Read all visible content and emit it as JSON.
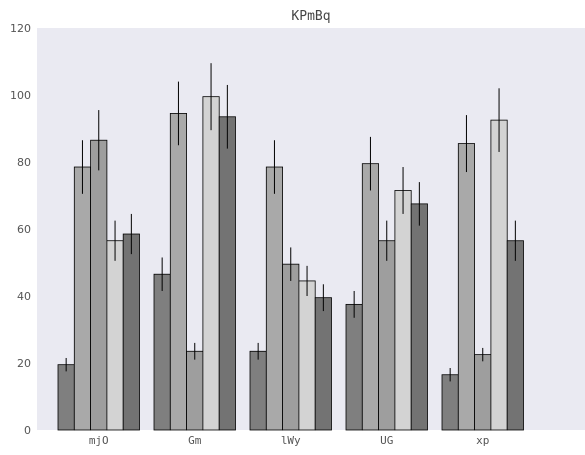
{
  "chart_data": {
    "type": "bar",
    "title": "KPmBq",
    "xlabel": "",
    "ylabel": "",
    "categories": [
      "mjO",
      "Gm",
      "lWy",
      "UG",
      "xp"
    ],
    "ylim": [
      0,
      120
    ],
    "yticks": [
      0,
      20,
      40,
      60,
      80,
      100,
      120
    ],
    "grid": false,
    "legend": "none",
    "colors": {
      "background": "#eaeaf2",
      "series": [
        "#7f7f7f",
        "#a9a9a9",
        "#9e9e9e",
        "#d3d3d3",
        "#737373"
      ],
      "edge": "#000000",
      "errorbar": "#000000"
    },
    "series": [
      {
        "values": [
          19.5,
          46.5,
          23.5,
          37.5,
          16.5
        ],
        "errors": [
          2,
          5,
          2.5,
          4,
          2
        ]
      },
      {
        "values": [
          78.5,
          94.5,
          78.5,
          79.5,
          85.5
        ],
        "errors": [
          8,
          9.5,
          8,
          8,
          8.5
        ]
      },
      {
        "values": [
          86.5,
          23.5,
          49.5,
          56.5,
          22.5
        ],
        "errors": [
          9,
          2.5,
          5,
          6,
          2
        ]
      },
      {
        "values": [
          56.5,
          99.5,
          44.5,
          71.5,
          92.5
        ],
        "errors": [
          6,
          10,
          4.5,
          7,
          9.5
        ]
      },
      {
        "values": [
          58.5,
          93.5,
          39.5,
          67.5,
          56.5
        ],
        "errors": [
          6,
          9.5,
          4,
          6.5,
          6
        ]
      }
    ]
  }
}
